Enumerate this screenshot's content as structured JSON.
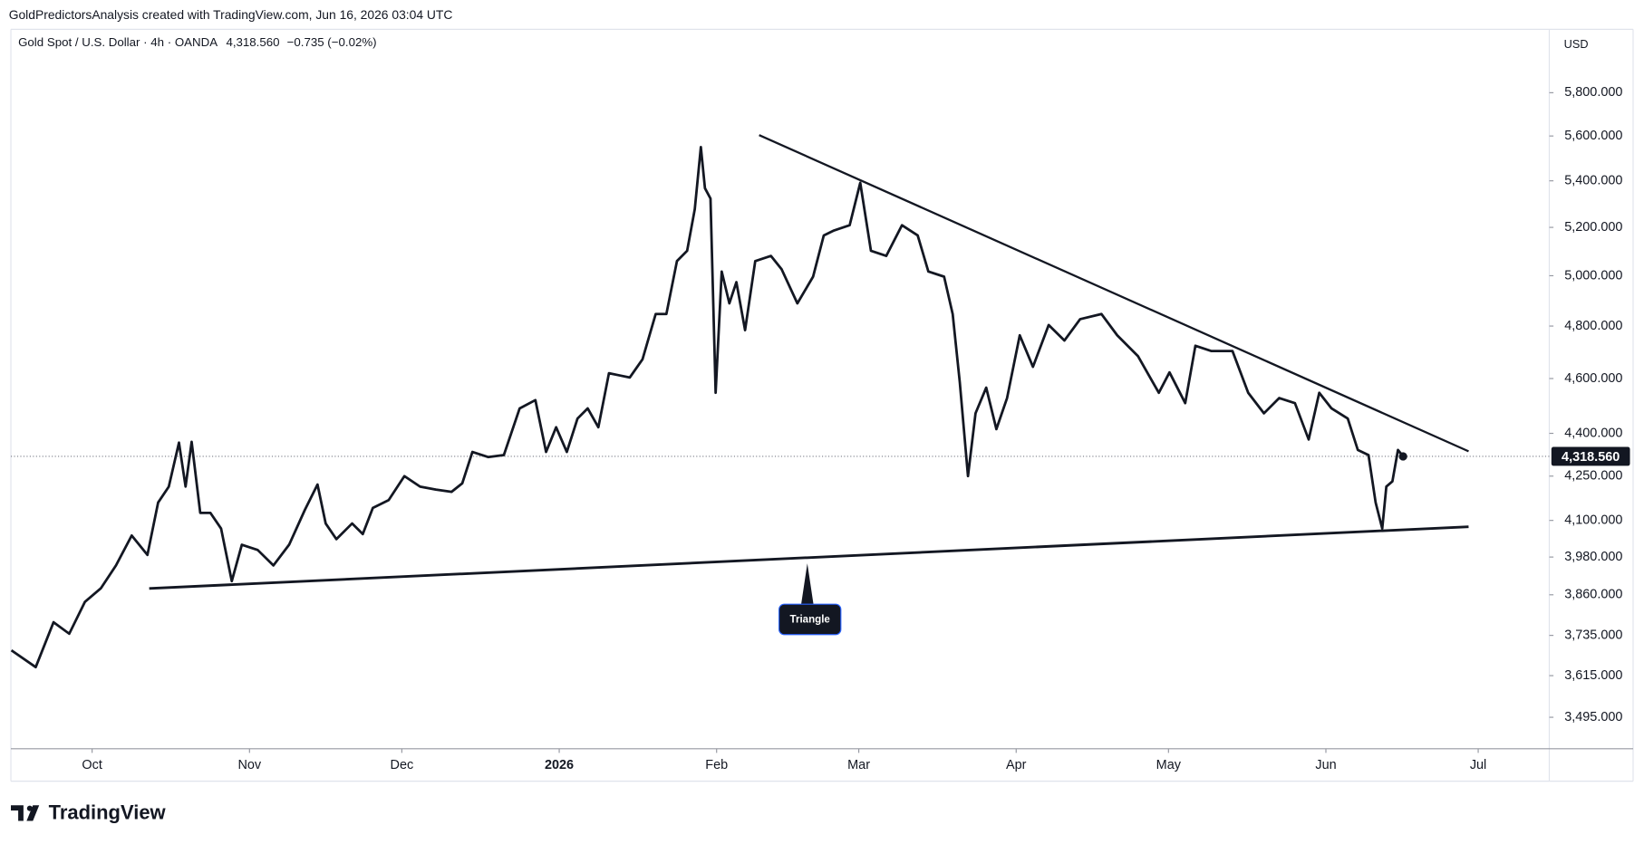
{
  "header": {
    "credit": "GoldPredictorsAnalysis created with TradingView.com, Jun 16, 2026 03:04 UTC"
  },
  "footer": {
    "logo": "TradingView"
  },
  "chart_data": {
    "type": "line",
    "title": "Gold Spot / U.S. Dollar · 4h · OANDA",
    "last": "4,318.560",
    "change": "−0.735 (−0.02%)",
    "currency": "USD",
    "annotation": "Triangle",
    "log_scale": true,
    "grid": false,
    "price_line": {
      "value": 4318.56,
      "label": "4,318.560"
    },
    "xlim": [
      -16,
      287
    ],
    "xticks": [
      {
        "value": 0,
        "label": "Oct"
      },
      {
        "value": 31,
        "label": "Nov"
      },
      {
        "value": 61,
        "label": "Dec"
      },
      {
        "value": 92,
        "label": "2026"
      },
      {
        "value": 123,
        "label": "Feb"
      },
      {
        "value": 151,
        "label": "Mar"
      },
      {
        "value": 182,
        "label": "Apr"
      },
      {
        "value": 212,
        "label": "May"
      },
      {
        "value": 243,
        "label": "Jun"
      },
      {
        "value": 273,
        "label": "Jul"
      }
    ],
    "ylim": [
      3407,
      6106
    ],
    "yticks": [
      {
        "value": 3495,
        "label": "3,495.000"
      },
      {
        "value": 3615,
        "label": "3,615.000"
      },
      {
        "value": 3735,
        "label": "3,735.000"
      },
      {
        "value": 3860,
        "label": "3,860.000"
      },
      {
        "value": 3980,
        "label": "3,980.000"
      },
      {
        "value": 4100,
        "label": "4,100.000"
      },
      {
        "value": 4250,
        "label": "4,250.000"
      },
      {
        "value": 4400,
        "label": "4,400.000"
      },
      {
        "value": 4600,
        "label": "4,600.000"
      },
      {
        "value": 4800,
        "label": "4,800.000"
      },
      {
        "value": 5000,
        "label": "5,000.000"
      },
      {
        "value": 5200,
        "label": "5,200.000"
      },
      {
        "value": 5400,
        "label": "5,400.000"
      },
      {
        "value": 5600,
        "label": "5,600.000"
      },
      {
        "value": 5800,
        "label": "5,800.000"
      }
    ],
    "x": [
      -15.9,
      -11.1,
      -7.6,
      -4.5,
      -1.4,
      1.7,
      4.7,
      7.8,
      10.9,
      13,
      15.1,
      17.1,
      18.4,
      19.6,
      21.3,
      23.3,
      25.4,
      27.5,
      29.5,
      32.6,
      35.7,
      38.8,
      41.9,
      44.4,
      46,
      48.1,
      51.2,
      53.3,
      55.3,
      58.4,
      61.5,
      64.6,
      67.7,
      70.8,
      72.9,
      74.9,
      78,
      81.1,
      84.2,
      87.3,
      89.4,
      91.4,
      93.5,
      95.6,
      97.6,
      99.7,
      101.8,
      103.8,
      105.9,
      108.4,
      111,
      113.1,
      115.2,
      117.2,
      118.7,
      119.9,
      120.7,
      121.8,
      122.8,
      124,
      125.5,
      126.9,
      128.6,
      130.6,
      133.7,
      135.8,
      138.9,
      142,
      144.1,
      146.1,
      149.2,
      151.3,
      153.4,
      156.4,
      159.5,
      162.6,
      164.7,
      167.8,
      169.5,
      170.9,
      172.5,
      174,
      176.1,
      178.1,
      180.2,
      182.7,
      185.3,
      188.4,
      191.5,
      194.6,
      198.8,
      201.9,
      206,
      210.1,
      212.2,
      215.3,
      217.3,
      220.4,
      224.6,
      227.7,
      230.8,
      233.8,
      236.9,
      239.6,
      241.7,
      244.1,
      247.3,
      249.3,
      251.4,
      252.8,
      254.1,
      254.9,
      256.1,
      257.2,
      258.2
    ],
    "series": [
      {
        "name": "Gold Spot / U.S. Dollar",
        "color": "#131722",
        "values": [
          3690,
          3640,
          3775,
          3740,
          3838,
          3880,
          3953,
          4050,
          3987,
          4160,
          4214,
          4367,
          4214,
          4370,
          4125,
          4125,
          4073,
          3903,
          4020,
          4003,
          3953,
          4020,
          4135,
          4221,
          4090,
          4038,
          4090,
          4055,
          4142,
          4168,
          4250,
          4214,
          4204,
          4196,
          4225,
          4334,
          4316,
          4323,
          4490,
          4520,
          4334,
          4422,
          4334,
          4453,
          4490,
          4422,
          4620,
          4612,
          4604,
          4672,
          4847,
          4847,
          5060,
          5102,
          5277,
          5550,
          5368,
          5323,
          4547,
          5017,
          4889,
          4974,
          4784,
          5060,
          5081,
          5026,
          4889,
          4996,
          5166,
          5187,
          5209,
          5391,
          5102,
          5081,
          5209,
          5166,
          5017,
          4996,
          4847,
          4585,
          4250,
          4472,
          4566,
          4415,
          4528,
          4764,
          4644,
          4804,
          4744,
          4827,
          4847,
          4764,
          4684,
          4547,
          4623,
          4509,
          4724,
          4704,
          4704,
          4547,
          4472,
          4528,
          4509,
          4378,
          4547,
          4490,
          4453,
          4341,
          4323,
          4160,
          4073,
          4214,
          4232,
          4341,
          4318.56
        ]
      }
    ]
  }
}
